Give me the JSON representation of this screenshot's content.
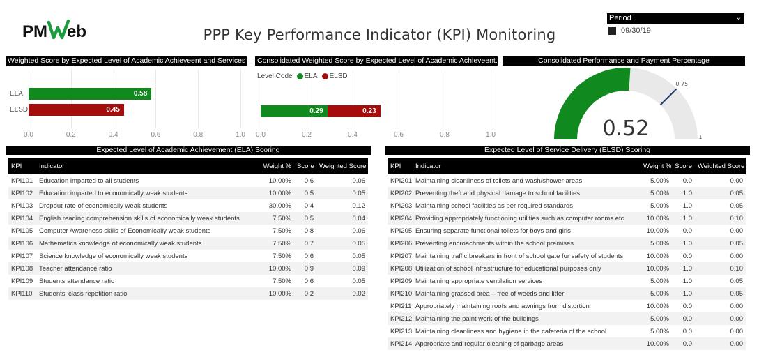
{
  "logo": {
    "text_a": "PM",
    "text_b": "Web",
    "primary_color": "#111111",
    "accent_color": "#1a9c3e"
  },
  "page_title": "PPP Key Performance Indicator (KPI) Monitoring",
  "period_filter": {
    "label": "Period",
    "selected_value": "09/30/19"
  },
  "chart1": {
    "title": "Weighted Score by Expected Level of Academic Achieveent and Services ...",
    "chart_data": {
      "type": "bar",
      "orientation": "horizontal",
      "categories": [
        "ELA",
        "ELSD"
      ],
      "values": [
        0.58,
        0.45
      ],
      "value_labels": [
        "0.58",
        "0.45"
      ],
      "colors": [
        "#108a1e",
        "#a50d0d"
      ],
      "xlim": [
        0,
        1.0
      ],
      "ticks": [
        "0.0",
        "0.2",
        "0.4",
        "0.6",
        "0.8",
        "1.0"
      ]
    }
  },
  "chart2": {
    "title": "Consolidated Weighted Score by Expected Level of Academic Achieveent...",
    "legend": {
      "title": "Level Code",
      "items": [
        {
          "name": "ELA",
          "color": "#108a1e"
        },
        {
          "name": "ELSD",
          "color": "#a50d0d"
        }
      ]
    },
    "chart_data": {
      "type": "bar",
      "orientation": "horizontal",
      "stacked": true,
      "series": [
        {
          "name": "ELA",
          "values": [
            0.29
          ],
          "label": "0.29"
        },
        {
          "name": "ELSD",
          "values": [
            0.23
          ],
          "label": "0.23"
        }
      ],
      "xlim": [
        0,
        1.0
      ],
      "ticks": [
        "0.0",
        "0.2",
        "0.4",
        "0.6",
        "0.8",
        "1.0"
      ]
    }
  },
  "gauge": {
    "title": "Consolidated Performance and Payment Percentage",
    "chart_data": {
      "type": "gauge",
      "value": 0.52,
      "value_label": "0.52",
      "min": 0,
      "min_label": "0",
      "max": 1,
      "max_label": "1",
      "target": 0.75,
      "target_label": "0.75",
      "fill_color": "#108a1e",
      "track_color": "#e9e9e9",
      "target_color": "#1f3864"
    }
  },
  "ela_table": {
    "title": "Expected Level of Academic Achievement (ELA) Scoring",
    "headers": [
      "KPI",
      "Indicator",
      "Weight %",
      "Score",
      "Weighted Score"
    ],
    "rows": [
      [
        "KPI101",
        "Education imparted to all students",
        "10.00%",
        "0.6",
        "0.06"
      ],
      [
        "KPI102",
        "Education imparted to economically weak students",
        "10.00%",
        "0.5",
        "0.05"
      ],
      [
        "KPI103",
        "Dropout rate of economically weak students",
        "30.00%",
        "0.4",
        "0.12"
      ],
      [
        "KPI104",
        "English reading comprehension skills of economically weak students",
        "7.50%",
        "0.5",
        "0.04"
      ],
      [
        "KPI105",
        "Computer Awareness skills of Economically weak students",
        "7.50%",
        "0.8",
        "0.06"
      ],
      [
        "KPI106",
        "Mathematics knowledge of economically weak students",
        "7.50%",
        "0.7",
        "0.05"
      ],
      [
        "KPI107",
        "Science knowledge of economically weak students",
        "7.50%",
        "0.6",
        "0.05"
      ],
      [
        "KPI108",
        "Teacher attendance ratio",
        "10.00%",
        "0.9",
        "0.09"
      ],
      [
        "KPI109",
        "Students attendance ratio",
        "7.50%",
        "0.6",
        "0.05"
      ],
      [
        "KPI110",
        "Students' class repetition ratio",
        "10.00%",
        "0.2",
        "0.02"
      ]
    ]
  },
  "elsd_table": {
    "title": "Expected Level of Service Delivery (ELSD) Scoring",
    "headers": [
      "KPI",
      "Indicator",
      "Weight %",
      "Score",
      "Weighted Score"
    ],
    "rows": [
      [
        "KPI201",
        "Maintaining cleanliness of toilets and wash/shower areas",
        "5.00%",
        "0.0",
        "0.00"
      ],
      [
        "KPI202",
        "Preventing theft and physical damage to school facilities",
        "5.00%",
        "1.0",
        "0.05"
      ],
      [
        "KPI203",
        "Maintaining school facilities as per required standards",
        "5.00%",
        "1.0",
        "0.05"
      ],
      [
        "KPI204",
        "Providing appropriately functioning utilities such as computer rooms etc",
        "10.00%",
        "1.0",
        "0.10"
      ],
      [
        "KPI205",
        "Ensuring separate functional toilets for boys and girls",
        "10.00%",
        "0.0",
        "0.00"
      ],
      [
        "KPI206",
        "Preventing encroachments within the school premises",
        "5.00%",
        "1.0",
        "0.05"
      ],
      [
        "KPI207",
        "Maintaining traffic breakers in front of school gate for safety of students",
        "10.00%",
        "0.0",
        "0.00"
      ],
      [
        "KPI208",
        "Utilization of school infrastructure for educational purposes only",
        "10.00%",
        "1.0",
        "0.10"
      ],
      [
        "KPI209",
        "Maintaining appropriate ventilation services",
        "5.00%",
        "1.0",
        "0.05"
      ],
      [
        "KPI210",
        "Maintaining grassed area – free of weeds and litter",
        "5.00%",
        "1.0",
        "0.05"
      ],
      [
        "KPI211",
        "Appropriately maintaining roofs and awnings from distortion",
        "10.00%",
        "0.0",
        "0.00"
      ],
      [
        "KPI212",
        "Maintaining the paint work of the buildings",
        "5.00%",
        "0.0",
        "0.00"
      ],
      [
        "KPI213",
        "Maintaining cleanliness and hygiene in the cafeteria of the school",
        "5.00%",
        "0.0",
        "0.00"
      ],
      [
        "KPI214",
        "Appropriate and regular cleaning of garbage areas",
        "10.00%",
        "0.0",
        "0.00"
      ]
    ]
  }
}
